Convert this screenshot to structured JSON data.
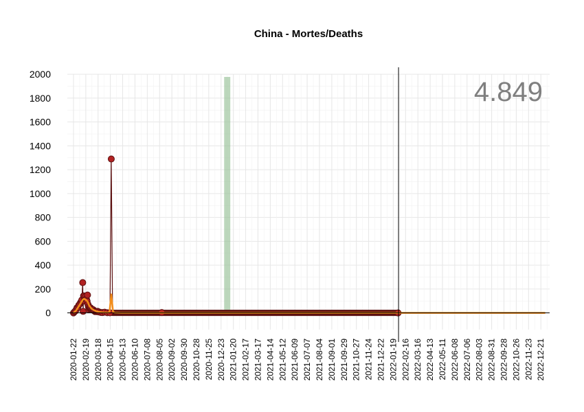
{
  "chart_data": {
    "type": "line",
    "title": "China - Mortes/Deaths",
    "total_label": "4.849",
    "ylim": [
      -140,
      2070
    ],
    "yticks": [
      0,
      200,
      400,
      600,
      800,
      1000,
      1200,
      1400,
      1600,
      1800,
      2000
    ],
    "xlim": [
      "2020-01-08",
      "2023-01-10"
    ],
    "x_tick_labels": [
      "2020-01-22",
      "2020-02-19",
      "2020-03-18",
      "2020-04-15",
      "2020-05-13",
      "2020-06-10",
      "2020-07-08",
      "2020-08-05",
      "2020-09-02",
      "2020-09-30",
      "2020-10-28",
      "2020-11-25",
      "2020-12-23",
      "2021-01-20",
      "2021-02-17",
      "2021-03-17",
      "2021-04-14",
      "2021-05-12",
      "2021-06-09",
      "2021-07-07",
      "2021-08-04",
      "2021-09-01",
      "2021-09-29",
      "2021-10-27",
      "2021-11-24",
      "2021-12-22",
      "2022-01-19",
      "2022-02-16",
      "2022-03-16",
      "2022-04-13",
      "2022-05-11",
      "2022-06-08",
      "2022-07-06",
      "2022-08-03",
      "2022-08-31",
      "2022-09-28",
      "2022-10-26",
      "2022-11-23",
      "2022-12-21"
    ],
    "shaded_period": {
      "start": "2020-12-30",
      "end": "2021-01-13",
      "color": "#8fbc8f"
    },
    "vertical_line": {
      "date": "2022-01-31",
      "color": "#000000"
    },
    "grid": true,
    "series": [
      {
        "kind": "daily_deaths",
        "color": "#b22222",
        "stroke": "#5c1010",
        "points": [
          [
            "2020-01-22",
            0
          ],
          [
            "2020-01-24",
            8
          ],
          [
            "2020-01-26",
            15
          ],
          [
            "2020-01-28",
            26
          ],
          [
            "2020-01-30",
            43
          ],
          [
            "2020-02-01",
            46
          ],
          [
            "2020-02-03",
            64
          ],
          [
            "2020-02-05",
            73
          ],
          [
            "2020-02-07",
            86
          ],
          [
            "2020-02-09",
            97
          ],
          [
            "2020-02-10",
            108
          ],
          [
            "2020-02-12",
            254
          ],
          [
            "2020-02-13",
            13
          ],
          [
            "2020-02-14",
            143
          ],
          [
            "2020-02-15",
            142
          ],
          [
            "2020-02-16",
            105
          ],
          [
            "2020-02-17",
            98
          ],
          [
            "2020-02-18",
            136
          ],
          [
            "2020-02-19",
            114
          ],
          [
            "2020-02-20",
            118
          ],
          [
            "2020-02-21",
            109
          ],
          [
            "2020-02-22",
            97
          ],
          [
            "2020-02-23",
            150
          ],
          [
            "2020-02-24",
            71
          ],
          [
            "2020-02-25",
            52
          ],
          [
            "2020-02-26",
            29
          ],
          [
            "2020-02-27",
            44
          ],
          [
            "2020-02-28",
            47
          ],
          [
            "2020-02-29",
            35
          ],
          [
            "2020-03-01",
            42
          ],
          [
            "2020-03-03",
            31
          ],
          [
            "2020-03-05",
            28
          ],
          [
            "2020-03-07",
            27
          ],
          [
            "2020-03-09",
            17
          ],
          [
            "2020-03-11",
            11
          ],
          [
            "2020-03-13",
            13
          ],
          [
            "2020-03-15",
            10
          ],
          [
            "2020-03-17",
            13
          ],
          [
            "2020-03-20",
            8
          ],
          [
            "2020-03-24",
            4
          ],
          [
            "2020-03-28",
            3
          ],
          [
            "2020-04-02",
            6
          ],
          [
            "2020-04-08",
            2
          ],
          [
            "2020-04-14",
            1
          ],
          [
            "2020-04-17",
            1290
          ],
          [
            "2020-04-20",
            0
          ],
          [
            "2020-05-01",
            0
          ],
          [
            "2020-06-01",
            0
          ],
          [
            "2020-07-01",
            0
          ],
          [
            "2020-08-01",
            0
          ],
          [
            "2020-08-10",
            3
          ],
          [
            "2020-08-20",
            0
          ],
          [
            "2020-10-01",
            0
          ],
          [
            "2021-01-01",
            0
          ],
          [
            "2021-06-01",
            0
          ],
          [
            "2022-01-01",
            0
          ],
          [
            "2022-01-30",
            0
          ]
        ]
      },
      {
        "kind": "moving_average",
        "color": "#f28e1c",
        "points": [
          [
            "2020-01-22",
            0
          ],
          [
            "2020-01-28",
            20
          ],
          [
            "2020-02-03",
            55
          ],
          [
            "2020-02-08",
            85
          ],
          [
            "2020-02-12",
            110
          ],
          [
            "2020-02-15",
            118
          ],
          [
            "2020-02-19",
            110
          ],
          [
            "2020-02-23",
            95
          ],
          [
            "2020-02-27",
            60
          ],
          [
            "2020-03-03",
            36
          ],
          [
            "2020-03-08",
            24
          ],
          [
            "2020-03-14",
            14
          ],
          [
            "2020-03-20",
            9
          ],
          [
            "2020-03-28",
            5
          ],
          [
            "2020-04-10",
            3
          ],
          [
            "2020-04-13",
            6
          ],
          [
            "2020-04-17",
            155
          ],
          [
            "2020-04-21",
            10
          ],
          [
            "2020-04-25",
            2
          ],
          [
            "2020-05-10",
            0
          ],
          [
            "2020-06-01",
            0
          ],
          [
            "2021-01-01",
            0
          ],
          [
            "2022-01-01",
            0
          ],
          [
            "2022-12-31",
            0
          ]
        ]
      }
    ]
  }
}
